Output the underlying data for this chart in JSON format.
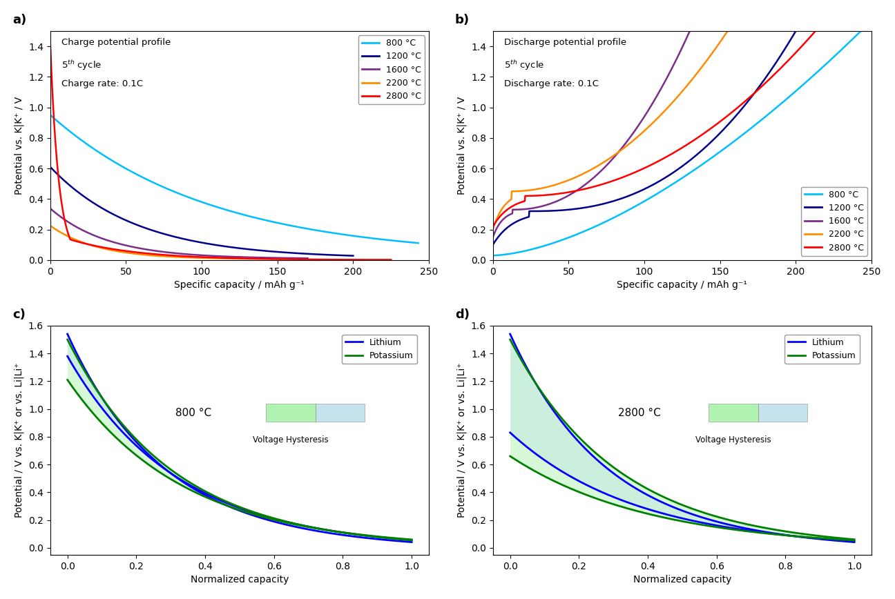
{
  "colors": {
    "800": "#00BFFF",
    "1200": "#00008B",
    "1600": "#7B2D8B",
    "2200": "#FF8C00",
    "2800": "#FF0000"
  },
  "legend_labels": [
    "800 °C",
    "1200 °C",
    "1600 °C",
    "2200 °C",
    "2800 °C"
  ],
  "subplot_labels": [
    "a)",
    "b)",
    "c)",
    "d)"
  ],
  "panel_a": {
    "title_line1": "Charge potential profile",
    "title_line2": "5$^{th}$ cycle",
    "title_line3": "Charge rate: 0.1C",
    "xlabel": "Specific capacity / mAh g⁻¹",
    "ylabel": "Potential vs. K|K⁺ / V",
    "xlim": [
      0,
      250
    ],
    "ylim": [
      0,
      1.5
    ]
  },
  "panel_b": {
    "title_line1": "Discharge potential profile",
    "title_line2": "5$^{th}$ cycle",
    "title_line3": "Discharge rate: 0.1C",
    "xlabel": "Specific capacity / mAh g⁻¹",
    "ylabel": "Potential vs. K|K⁺ / V",
    "xlim": [
      0,
      250
    ],
    "ylim": [
      0,
      1.5
    ]
  },
  "panel_c": {
    "annotation": "800 °C",
    "xlabel": "Normalized capacity",
    "ylabel": "Potential / V vs. K|K⁺ or vs. Li|Li⁺",
    "xlim": [
      -0.05,
      1.05
    ],
    "ylim": [
      -0.05,
      1.6
    ]
  },
  "panel_d": {
    "annotation": "2800 °C",
    "xlabel": "Normalized capacity",
    "ylabel": "Potential / V vs. K|K⁺ or vs. Li|Li⁺",
    "xlim": [
      -0.05,
      1.05
    ],
    "ylim": [
      -0.05,
      1.6
    ]
  }
}
